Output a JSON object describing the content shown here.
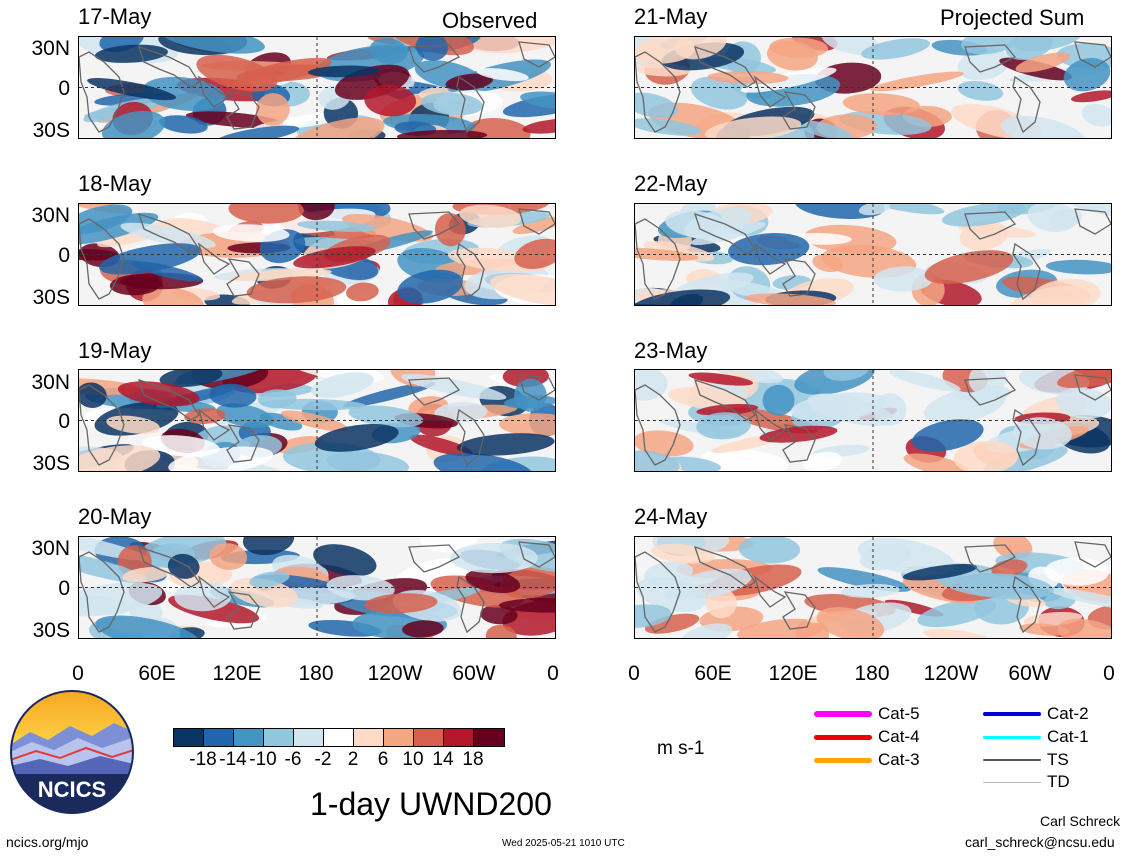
{
  "panels_left": [
    {
      "date": "17-May"
    },
    {
      "date": "18-May"
    },
    {
      "date": "19-May"
    },
    {
      "date": "20-May"
    }
  ],
  "panels_right": [
    {
      "date": "21-May"
    },
    {
      "date": "22-May"
    },
    {
      "date": "23-May"
    },
    {
      "date": "24-May"
    }
  ],
  "left_tag": "Observed",
  "right_tag": "Projected Sum",
  "lat_labels": [
    "30N",
    "0",
    "30S"
  ],
  "lon_labels": [
    "0",
    "60E",
    "120E",
    "180",
    "120W",
    "60W",
    "0"
  ],
  "colorbar": {
    "colors": [
      "#0a3464",
      "#2166ac",
      "#4393c3",
      "#92c5de",
      "#d1e5f0",
      "#ffffff",
      "#fddbc7",
      "#f4a582",
      "#d6604d",
      "#b2182b",
      "#67001f"
    ],
    "ticks": [
      "-18",
      "-14",
      "-10",
      "-6",
      "-2",
      "2",
      "6",
      "10",
      "14",
      "18"
    ],
    "units": "m s-1"
  },
  "title": "1-day UWND200",
  "legend": [
    {
      "label": "Cat-5",
      "color": "#ff00ff"
    },
    {
      "label": "Cat-4",
      "color": "#ee0000"
    },
    {
      "label": "Cat-3",
      "color": "#ffa500"
    },
    {
      "label": "Cat-2",
      "color": "#0000dd"
    },
    {
      "label": "Cat-1",
      "color": "#00ffff"
    },
    {
      "label": "TS",
      "color": "#555555"
    },
    {
      "label": "TD",
      "color": "#bbbbbb"
    }
  ],
  "logo_text": "NCICS",
  "footer": {
    "url": "ncics.org/mjo",
    "timestamp": "Wed 2025-05-21 1010 UTC",
    "author": "Carl Schreck",
    "email": "carl_schreck@ncsu.edu"
  }
}
